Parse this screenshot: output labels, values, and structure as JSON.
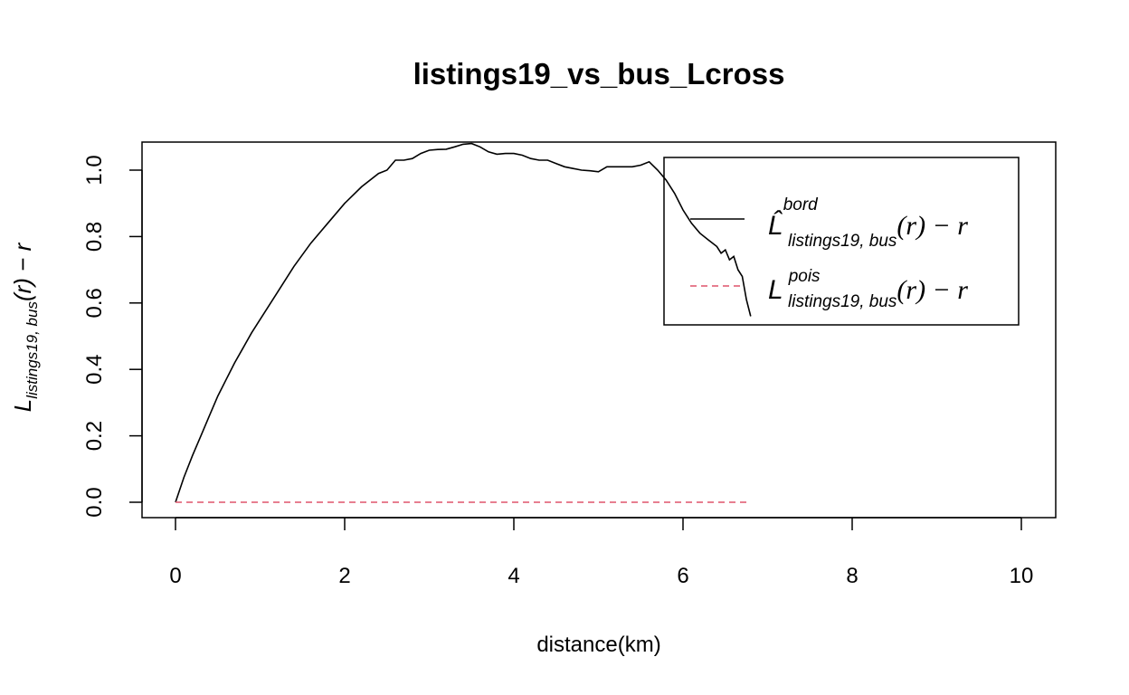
{
  "chart_data": {
    "type": "line",
    "title": "listings19_vs_bus_Lcross",
    "xlabel": "distance(km)",
    "ylabel": {
      "base": "L",
      "subscript": "listings19, bus",
      "rest": "(r) − r"
    },
    "xlim": [
      0,
      10
    ],
    "ylim": [
      0,
      1.05
    ],
    "xticks": [
      "0",
      "2",
      "4",
      "6",
      "8",
      "10"
    ],
    "yticks": [
      "0.0",
      "0.2",
      "0.4",
      "0.6",
      "0.8",
      "1.0"
    ],
    "grid": false,
    "legend_position": "top-right",
    "series": [
      {
        "key": "bord",
        "style": "solid",
        "color": "#000000",
        "legend": {
          "base": "L̂",
          "superscript": "bord",
          "subscript": "listings19, bus",
          "rest": "(r) − r"
        },
        "x": [
          0,
          0.1,
          0.2,
          0.3,
          0.4,
          0.5,
          0.6,
          0.7,
          0.8,
          0.9,
          1.0,
          1.2,
          1.4,
          1.6,
          1.8,
          2.0,
          2.2,
          2.4,
          2.5,
          2.6,
          2.7,
          2.8,
          2.9,
          3.0,
          3.1,
          3.2,
          3.3,
          3.4,
          3.5,
          3.6,
          3.7,
          3.8,
          3.9,
          4.0,
          4.1,
          4.2,
          4.3,
          4.4,
          4.5,
          4.6,
          4.7,
          4.8,
          4.9,
          5.0,
          5.1,
          5.2,
          5.3,
          5.4,
          5.5,
          5.6,
          5.7,
          5.8,
          5.9,
          6.0,
          6.1,
          6.2,
          6.3,
          6.35,
          6.4,
          6.45,
          6.5,
          6.55,
          6.6,
          6.65,
          6.7,
          6.75,
          6.8
        ],
        "y": [
          0.0,
          0.075,
          0.14,
          0.2,
          0.26,
          0.32,
          0.37,
          0.42,
          0.465,
          0.51,
          0.55,
          0.63,
          0.71,
          0.78,
          0.84,
          0.9,
          0.95,
          0.99,
          1.0,
          1.03,
          1.03,
          1.035,
          1.05,
          1.06,
          1.062,
          1.063,
          1.07,
          1.078,
          1.08,
          1.07,
          1.055,
          1.048,
          1.05,
          1.05,
          1.045,
          1.035,
          1.03,
          1.03,
          1.02,
          1.01,
          1.005,
          1.0,
          0.998,
          0.995,
          1.01,
          1.01,
          1.01,
          1.01,
          1.015,
          1.025,
          1.0,
          0.97,
          0.93,
          0.88,
          0.84,
          0.81,
          0.79,
          0.78,
          0.77,
          0.75,
          0.76,
          0.73,
          0.74,
          0.7,
          0.68,
          0.61,
          0.56
        ]
      },
      {
        "key": "pois",
        "style": "dashed",
        "color": "#DF536B",
        "legend": {
          "base": "L",
          "superscript": "pois",
          "subscript": "listings19, bus",
          "rest": "(r) − r"
        },
        "x": [
          0,
          6.8
        ],
        "y": [
          0,
          0
        ]
      }
    ]
  }
}
